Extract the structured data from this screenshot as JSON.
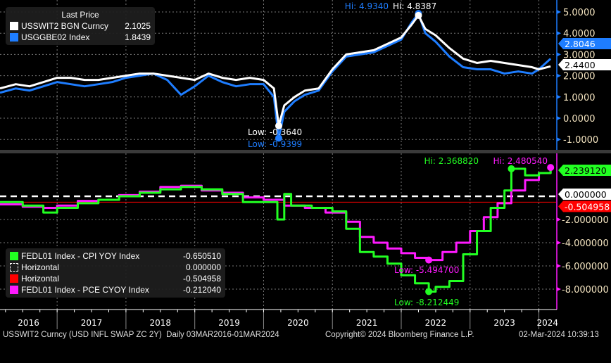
{
  "chart_data": [
    {
      "type": "line",
      "panel": "upper",
      "ylim": [
        -1.5,
        5.4
      ],
      "xlim": [
        2016.17,
        2024.25
      ],
      "yticks": [
        "5.0000",
        "4.0000",
        "3.0000",
        "2.0000",
        "1.0000",
        "0.0000",
        "-1.0000"
      ],
      "ytick_values": [
        5,
        4,
        3,
        2,
        1,
        0,
        -1
      ],
      "legend_title": "Last Price",
      "series": [
        {
          "name": "USSWIT2 BGN Curncy",
          "last": "2.1025",
          "color": "#ffffff",
          "end_label": "2.4400",
          "x": [
            2016.17,
            2016.4,
            2016.6,
            2016.8,
            2017.0,
            2017.2,
            2017.4,
            2017.6,
            2017.8,
            2018.0,
            2018.2,
            2018.4,
            2018.6,
            2018.8,
            2019.0,
            2019.2,
            2019.4,
            2019.6,
            2019.8,
            2020.0,
            2020.15,
            2020.22,
            2020.3,
            2020.45,
            2020.6,
            2020.8,
            2021.0,
            2021.2,
            2021.4,
            2021.6,
            2021.8,
            2022.0,
            2022.15,
            2022.25,
            2022.35,
            2022.5,
            2022.7,
            2022.9,
            2023.1,
            2023.3,
            2023.5,
            2023.7,
            2023.9,
            2024.0,
            2024.17
          ],
          "y": [
            1.4,
            1.6,
            1.5,
            1.7,
            1.9,
            1.9,
            1.8,
            1.8,
            1.9,
            2.0,
            2.1,
            2.1,
            2.0,
            1.9,
            1.8,
            2.1,
            1.9,
            1.8,
            1.9,
            1.8,
            1.4,
            -0.36,
            0.6,
            1.0,
            1.3,
            1.4,
            2.3,
            3.0,
            3.1,
            3.2,
            3.5,
            3.8,
            4.4,
            4.84,
            4.2,
            3.9,
            3.3,
            2.8,
            2.6,
            2.7,
            2.6,
            2.5,
            2.4,
            2.3,
            2.44
          ]
        },
        {
          "name": "USGGBE02 Index",
          "last": "1.8439",
          "color": "#1e7dff",
          "end_label": "2.8046",
          "x": [
            2016.17,
            2016.4,
            2016.6,
            2016.8,
            2017.0,
            2017.2,
            2017.4,
            2017.6,
            2017.8,
            2018.0,
            2018.2,
            2018.4,
            2018.6,
            2018.8,
            2019.0,
            2019.2,
            2019.4,
            2019.6,
            2019.8,
            2020.0,
            2020.15,
            2020.22,
            2020.3,
            2020.45,
            2020.6,
            2020.8,
            2021.0,
            2021.2,
            2021.4,
            2021.6,
            2021.8,
            2022.0,
            2022.15,
            2022.25,
            2022.35,
            2022.5,
            2022.7,
            2022.9,
            2023.1,
            2023.3,
            2023.5,
            2023.7,
            2023.9,
            2024.0,
            2024.17
          ],
          "y": [
            1.2,
            1.4,
            1.3,
            1.5,
            1.7,
            1.6,
            1.5,
            1.6,
            1.7,
            1.9,
            2.0,
            2.1,
            1.8,
            1.1,
            1.5,
            2.0,
            1.7,
            1.5,
            1.6,
            1.6,
            1.0,
            -0.94,
            0.3,
            0.8,
            1.1,
            1.3,
            2.2,
            2.9,
            3.0,
            3.1,
            3.4,
            3.7,
            4.5,
            4.93,
            4.0,
            3.6,
            2.9,
            2.4,
            2.3,
            2.3,
            2.1,
            2.2,
            2.1,
            2.3,
            2.8
          ]
        }
      ],
      "annotations": [
        {
          "text": "Hi: 4.9340",
          "color": "#1e7dff"
        },
        {
          "text": "Hi: 4.8387",
          "color": "#ffffff"
        },
        {
          "text": "Low: -0.3640",
          "color": "#ffffff"
        },
        {
          "text": "Low: -0.9399",
          "color": "#1e7dff"
        }
      ]
    },
    {
      "type": "line",
      "panel": "lower",
      "ylim": [
        -9.2,
        3.5
      ],
      "xlim": [
        2016.17,
        2024.25
      ],
      "yticks": [
        "-2.000000",
        "-4.000000",
        "-6.000000",
        "-8.000000"
      ],
      "ytick_values": [
        -2,
        -4,
        -6,
        -8
      ],
      "series": [
        {
          "name": "FEDL01 Index - CPI YOY Index",
          "last": "-0.650510",
          "color": "#22ff22",
          "end_label": "2.239120",
          "x": [
            2016.17,
            2016.5,
            2016.8,
            2017.0,
            2017.3,
            2017.6,
            2017.9,
            2018.2,
            2018.5,
            2018.8,
            2019.1,
            2019.4,
            2019.7,
            2020.0,
            2020.2,
            2020.3,
            2020.4,
            2020.7,
            2021.0,
            2021.2,
            2021.4,
            2021.6,
            2021.8,
            2022.0,
            2022.2,
            2022.4,
            2022.5,
            2022.7,
            2022.9,
            2023.1,
            2023.3,
            2023.5,
            2023.6,
            2023.8,
            2024.0,
            2024.17
          ],
          "y": [
            -0.5,
            -0.8,
            -1.4,
            -1.0,
            -0.6,
            -0.3,
            0.0,
            0.3,
            0.6,
            0.8,
            0.6,
            0.2,
            -0.5,
            -0.5,
            -2.0,
            0.2,
            -0.8,
            -1.0,
            -1.3,
            -2.8,
            -4.8,
            -5.2,
            -5.8,
            -6.8,
            -7.5,
            -8.21,
            -7.8,
            -7.3,
            -5.0,
            -3.0,
            -1.0,
            0.5,
            2.37,
            1.8,
            2.0,
            2.24
          ]
        },
        {
          "name": "FEDL01 Index - PCE CYOY Index",
          "last": "-0.212040",
          "color": "#ff1aff",
          "end_label": "",
          "x": [
            2016.17,
            2016.5,
            2016.8,
            2017.0,
            2017.3,
            2017.6,
            2017.9,
            2018.2,
            2018.5,
            2018.8,
            2019.1,
            2019.4,
            2019.7,
            2020.0,
            2020.3,
            2020.6,
            2020.9,
            2021.2,
            2021.4,
            2021.6,
            2021.8,
            2022.0,
            2022.2,
            2022.4,
            2022.6,
            2022.8,
            2023.0,
            2023.2,
            2023.4,
            2023.6,
            2023.8,
            2024.0,
            2024.17
          ],
          "y": [
            -0.7,
            -0.9,
            -1.0,
            -0.8,
            -0.4,
            -0.3,
            0.1,
            0.4,
            0.8,
            0.9,
            0.5,
            0.3,
            -0.1,
            -0.3,
            -0.8,
            -1.0,
            -1.4,
            -2.2,
            -3.5,
            -4.0,
            -4.5,
            -4.9,
            -5.3,
            -5.49,
            -4.8,
            -4.0,
            -3.0,
            -1.8,
            -0.6,
            0.5,
            1.4,
            2.0,
            2.48
          ]
        },
        {
          "name": "Horizontal",
          "last": "0.000000",
          "color": "#ffffff",
          "level": 0,
          "end_label": "0.000000"
        },
        {
          "name": "Horizontal",
          "last": "-0.504958",
          "color": "#ff0000",
          "level": -0.504958,
          "end_label": "-0.504958"
        }
      ],
      "annotations": [
        {
          "text": "Hi: 2.368820",
          "color": "#22ff22"
        },
        {
          "text": "Hi: 2.480540",
          "color": "#ff1aff"
        },
        {
          "text": "Low: -5.494700",
          "color": "#ff1aff"
        },
        {
          "text": "Low: -8.212449",
          "color": "#22ff22"
        }
      ]
    }
  ],
  "xaxis": {
    "years": [
      "2016",
      "2017",
      "2018",
      "2019",
      "2020",
      "2021",
      "2022",
      "2023",
      "2024"
    ]
  },
  "footer": {
    "left": "USSWIT2 Curncy (USD INFL SWAP ZC 2Y)  Daily 03MAR2016-01MAR2024",
    "center": "Copyright© 2024 Bloomberg Finance L.P.",
    "right": "02-Mar-2024 10:39:13"
  }
}
